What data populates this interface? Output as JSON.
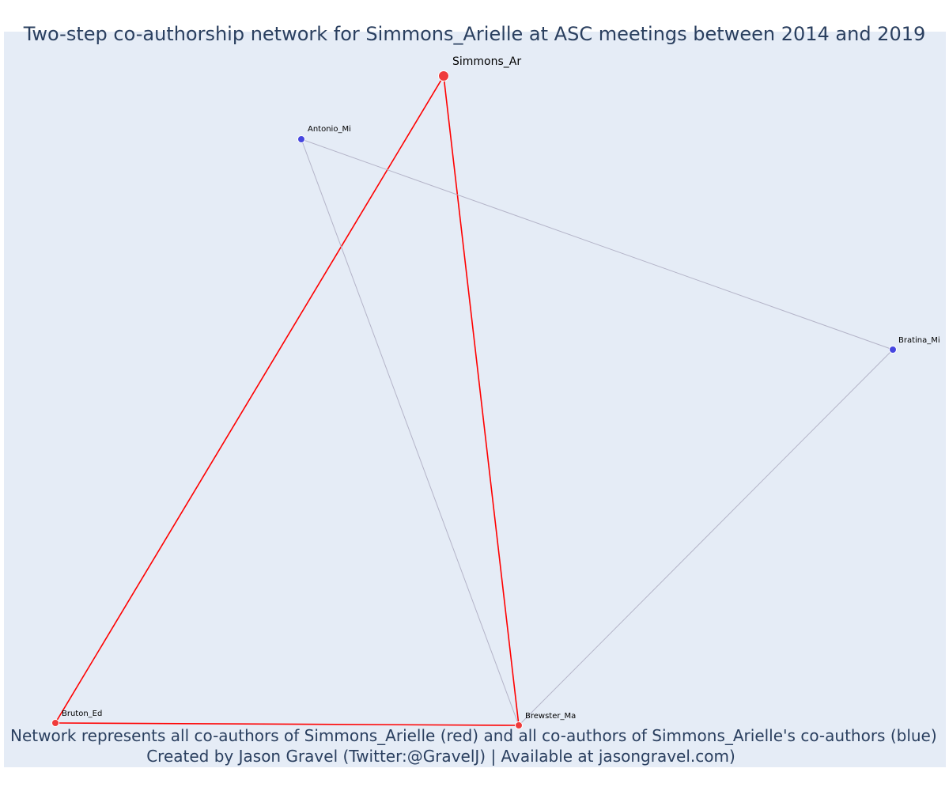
{
  "title": "Two-step co-authorship network for Simmons_Arielle at ASC meetings between 2014 and 2019",
  "caption_line1": "Network represents all co-authors of Simmons_Arielle (red) and all co-authors of Simmons_Arielle's co-authors (blue)",
  "caption_line2": "Created by Jason Gravel (Twitter:@GravelJ) | Available at jasongravel.com)",
  "colors": {
    "background": "#e5ecf6",
    "primary_node": "#ef3b3b",
    "secondary_node": "#4646e0",
    "primary_edge": "#ff0000",
    "secondary_edge": "#b4b4c8",
    "text": "#2a3f5f"
  },
  "network": {
    "nodes": [
      {
        "id": "Simmons_Ar",
        "label": "Simmons_Ar",
        "group": "focal"
      },
      {
        "id": "Antonio_Mi",
        "label": "Antonio_Mi",
        "group": "co-author-of-co-author"
      },
      {
        "id": "Bratina_Mi",
        "label": "Bratina_Mi",
        "group": "co-author-of-co-author"
      },
      {
        "id": "Bruton_Ed",
        "label": "Bruton_Ed",
        "group": "co-author"
      },
      {
        "id": "Brewster_Ma",
        "label": "Brewster_Ma",
        "group": "co-author"
      }
    ],
    "edges": [
      {
        "source": "Simmons_Ar",
        "target": "Bruton_Ed",
        "type": "direct"
      },
      {
        "source": "Simmons_Ar",
        "target": "Brewster_Ma",
        "type": "direct"
      },
      {
        "source": "Bruton_Ed",
        "target": "Brewster_Ma",
        "type": "direct"
      },
      {
        "source": "Antonio_Mi",
        "target": "Bratina_Mi",
        "type": "indirect"
      },
      {
        "source": "Antonio_Mi",
        "target": "Brewster_Ma",
        "type": "indirect"
      },
      {
        "source": "Bratina_Mi",
        "target": "Brewster_Ma",
        "type": "indirect"
      }
    ]
  }
}
